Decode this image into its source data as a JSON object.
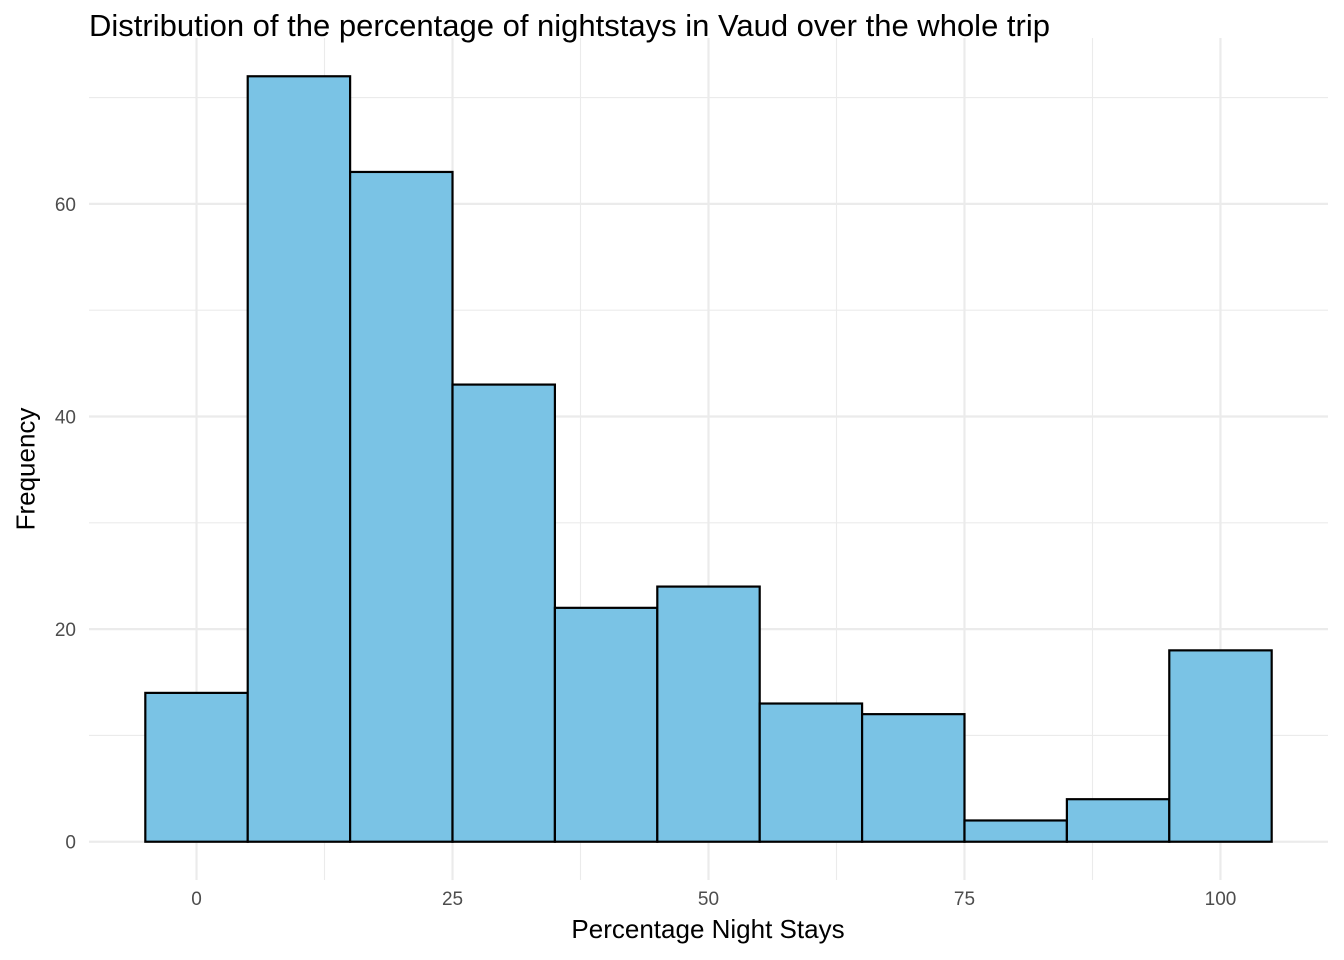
{
  "chart_data": {
    "type": "bar",
    "title": "Distribution of the percentage of nightstays in Vaud over the whole trip",
    "xlabel": "Percentage Night Stays",
    "ylabel": "Frequency",
    "bins": [
      {
        "from": -5,
        "to": 5,
        "count": 14
      },
      {
        "from": 5,
        "to": 15,
        "count": 72
      },
      {
        "from": 15,
        "to": 25,
        "count": 63
      },
      {
        "from": 25,
        "to": 35,
        "count": 43
      },
      {
        "from": 35,
        "to": 45,
        "count": 22
      },
      {
        "from": 45,
        "to": 55,
        "count": 24
      },
      {
        "from": 55,
        "to": 65,
        "count": 13
      },
      {
        "from": 65,
        "to": 75,
        "count": 12
      },
      {
        "from": 75,
        "to": 85,
        "count": 2
      },
      {
        "from": 85,
        "to": 95,
        "count": 4
      },
      {
        "from": 95,
        "to": 105,
        "count": 18
      }
    ],
    "x_ticks": [
      0,
      25,
      50,
      75,
      100
    ],
    "y_ticks": [
      0,
      20,
      40,
      60
    ],
    "xlim": [
      -10.5,
      110.5
    ],
    "ylim": [
      -3.6,
      75.6
    ],
    "grid": true,
    "legend": "none",
    "bar_fill": "#7AC3E5",
    "bar_stroke": "#000000",
    "grid_color": "#EBEBEB"
  }
}
